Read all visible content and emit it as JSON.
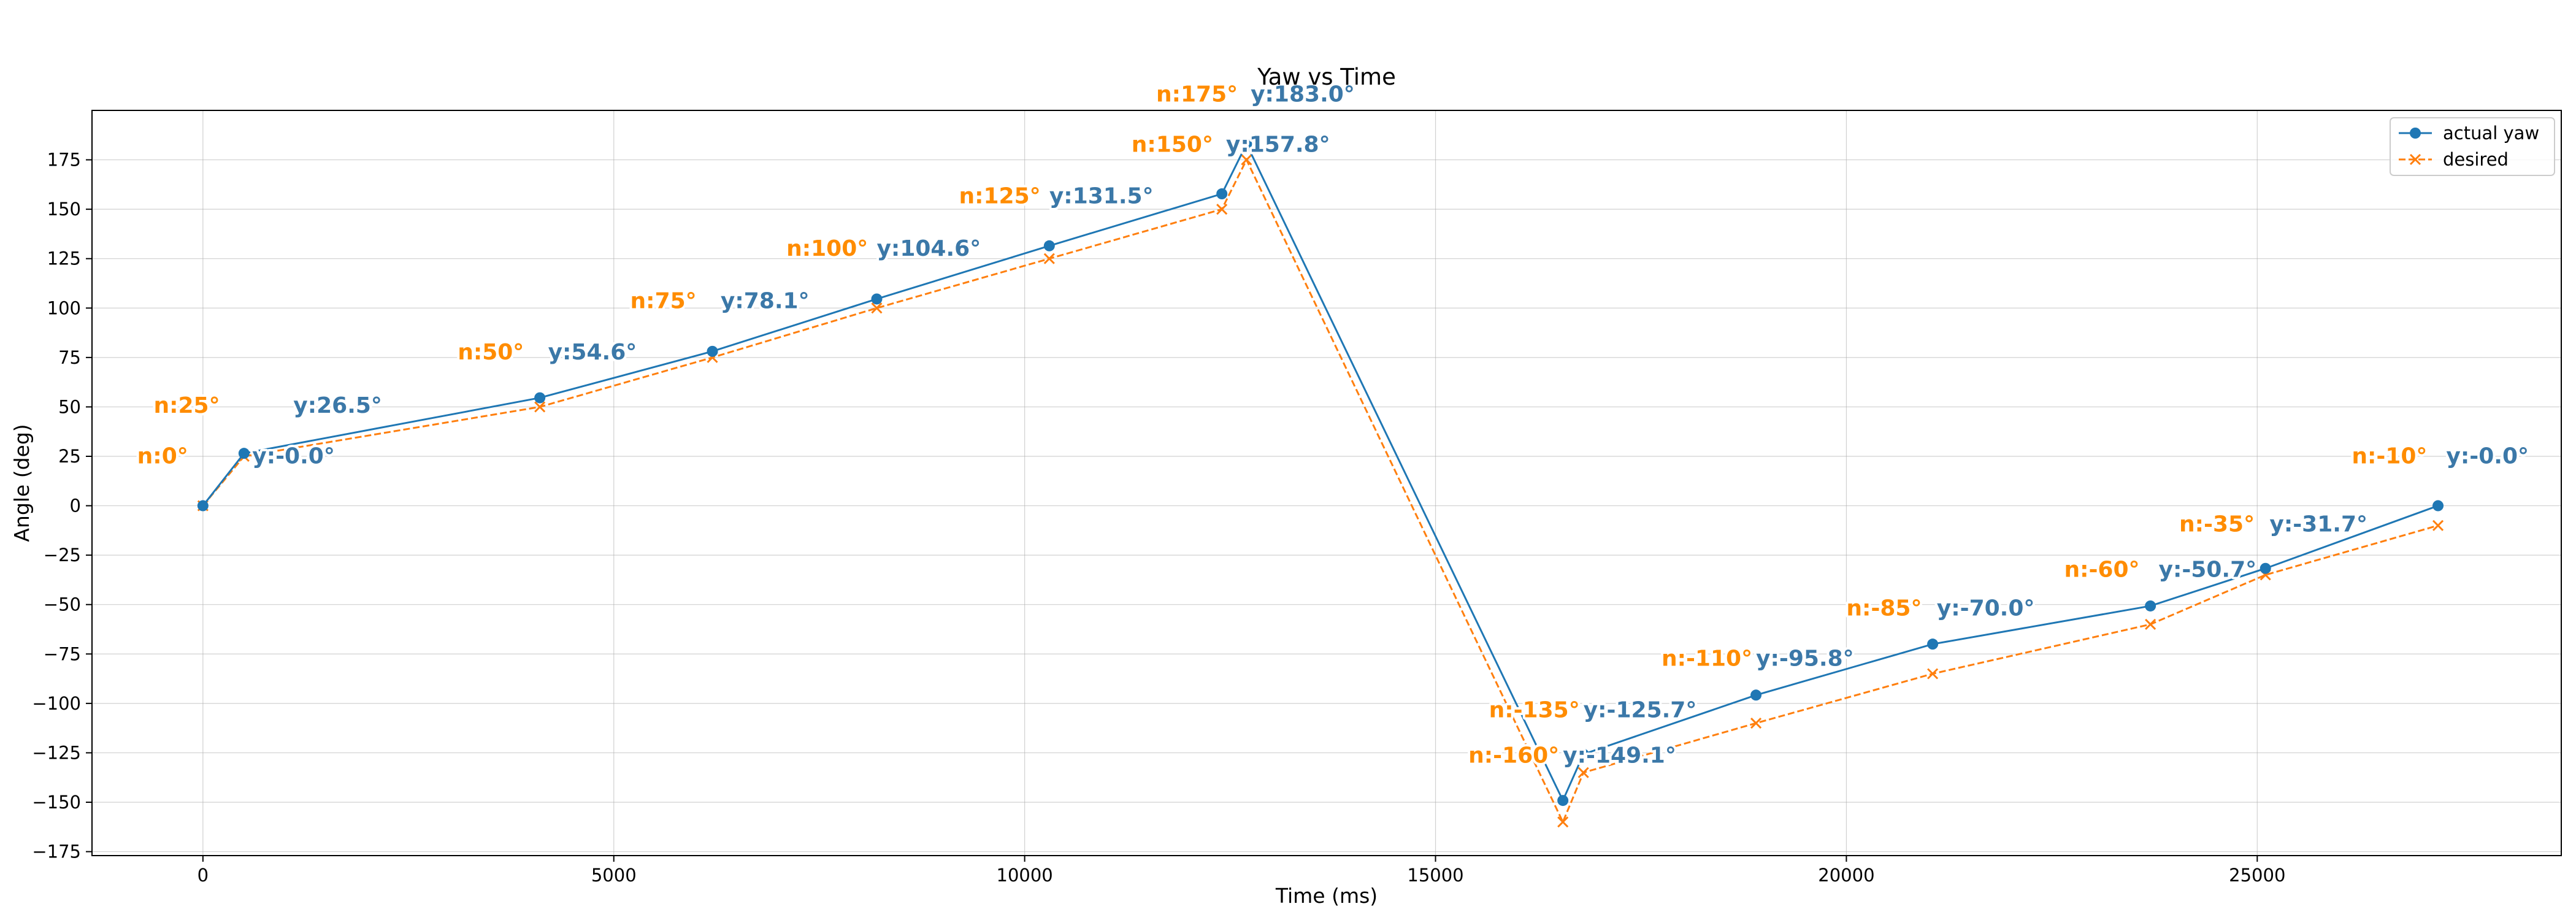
{
  "chart_data": {
    "type": "line",
    "title": "Yaw vs Time",
    "xlabel": "Time (ms)",
    "ylabel": "Angle (deg)",
    "xlim": [
      -1350,
      28700
    ],
    "ylim": [
      -177,
      200
    ],
    "xticks": [
      0,
      5000,
      10000,
      15000,
      20000,
      25000
    ],
    "yticks": [
      -175,
      -150,
      -125,
      -100,
      -75,
      -50,
      -25,
      0,
      25,
      50,
      75,
      100,
      125,
      150,
      175
    ],
    "grid": true,
    "legend_position": "top-right",
    "colors": {
      "actual": "#1f77b4",
      "desired": "#ff7f0e",
      "actual_label": "#3b78a8",
      "desired_label": "#ff8c00"
    },
    "series": [
      {
        "name": "actual yaw",
        "style": "solid-circle",
        "x": [
          0,
          500,
          4100,
          6200,
          8200,
          10300,
          12400,
          12700,
          16550,
          16800,
          18900,
          21050,
          23700,
          25100,
          27200
        ],
        "values": [
          0,
          26.5,
          54.6,
          78.1,
          104.6,
          131.5,
          157.8,
          183.0,
          -149.1,
          -125.7,
          -95.8,
          -70.0,
          -50.7,
          -31.7,
          0
        ]
      },
      {
        "name": "desired",
        "style": "dashed-x",
        "x": [
          0,
          500,
          4100,
          6200,
          8200,
          10300,
          12400,
          12700,
          16550,
          16800,
          18900,
          21050,
          23700,
          25100,
          27200
        ],
        "values": [
          0,
          25,
          50,
          75,
          100,
          125,
          150,
          175,
          -160,
          -135,
          -110,
          -85,
          -60,
          -35,
          -10
        ]
      }
    ],
    "annotations": [
      {
        "series": "desired",
        "text": "n:0°",
        "x": -800,
        "y": 21.5
      },
      {
        "series": "actual",
        "text": "y:-0.0°",
        "x": 600,
        "y": 21.5
      },
      {
        "series": "desired",
        "text": "n:25°",
        "x": -600,
        "y": 47
      },
      {
        "series": "actual",
        "text": "y:26.5°",
        "x": 1100,
        "y": 47
      },
      {
        "series": "desired",
        "text": "n:50°",
        "x": 3100,
        "y": 74
      },
      {
        "series": "actual",
        "text": "y:54.6°",
        "x": 4200,
        "y": 74
      },
      {
        "series": "desired",
        "text": "n:75°",
        "x": 5200,
        "y": 100
      },
      {
        "series": "actual",
        "text": "y:78.1°",
        "x": 6300,
        "y": 100
      },
      {
        "series": "desired",
        "text": "n:100°",
        "x": 7100,
        "y": 126.5
      },
      {
        "series": "actual",
        "text": "y:104.6°",
        "x": 8200,
        "y": 126.5
      },
      {
        "series": "desired",
        "text": "n:125°",
        "x": 9200,
        "y": 153
      },
      {
        "series": "actual",
        "text": "y:131.5°",
        "x": 10300,
        "y": 153
      },
      {
        "series": "desired",
        "text": "n:150°",
        "x": 11300,
        "y": 179
      },
      {
        "series": "actual",
        "text": "y:157.8°",
        "x": 12450,
        "y": 179
      },
      {
        "series": "desired",
        "text": "n:175°",
        "x": 11600,
        "y": 204.5
      },
      {
        "series": "actual",
        "text": "y:183.0°",
        "x": 12750,
        "y": 204.5
      },
      {
        "series": "desired",
        "text": "n:-135°",
        "x": 15650,
        "y": -107
      },
      {
        "series": "actual",
        "text": "y:-125.7°",
        "x": 16800,
        "y": -107
      },
      {
        "series": "desired",
        "text": "n:-160°",
        "x": 15400,
        "y": -130
      },
      {
        "series": "actual",
        "text": "y:-149.1°",
        "x": 16550,
        "y": -130
      },
      {
        "series": "desired",
        "text": "n:-110°",
        "x": 17750,
        "y": -81
      },
      {
        "series": "actual",
        "text": "y:-95.8°",
        "x": 18900,
        "y": -81
      },
      {
        "series": "desired",
        "text": "n:-85°",
        "x": 20000,
        "y": -55.5
      },
      {
        "series": "actual",
        "text": "y:-70.0°",
        "x": 21100,
        "y": -55.5
      },
      {
        "series": "desired",
        "text": "n:-60°",
        "x": 22650,
        "y": -36
      },
      {
        "series": "actual",
        "text": "y:-50.7°",
        "x": 23800,
        "y": -36
      },
      {
        "series": "desired",
        "text": "n:-35°",
        "x": 24050,
        "y": -13
      },
      {
        "series": "actual",
        "text": "y:-31.7°",
        "x": 25150,
        "y": -13
      },
      {
        "series": "desired",
        "text": "n:-10°",
        "x": 26150,
        "y": 21.5
      },
      {
        "series": "actual",
        "text": "y:-0.0°",
        "x": 27300,
        "y": 21.5
      }
    ]
  }
}
